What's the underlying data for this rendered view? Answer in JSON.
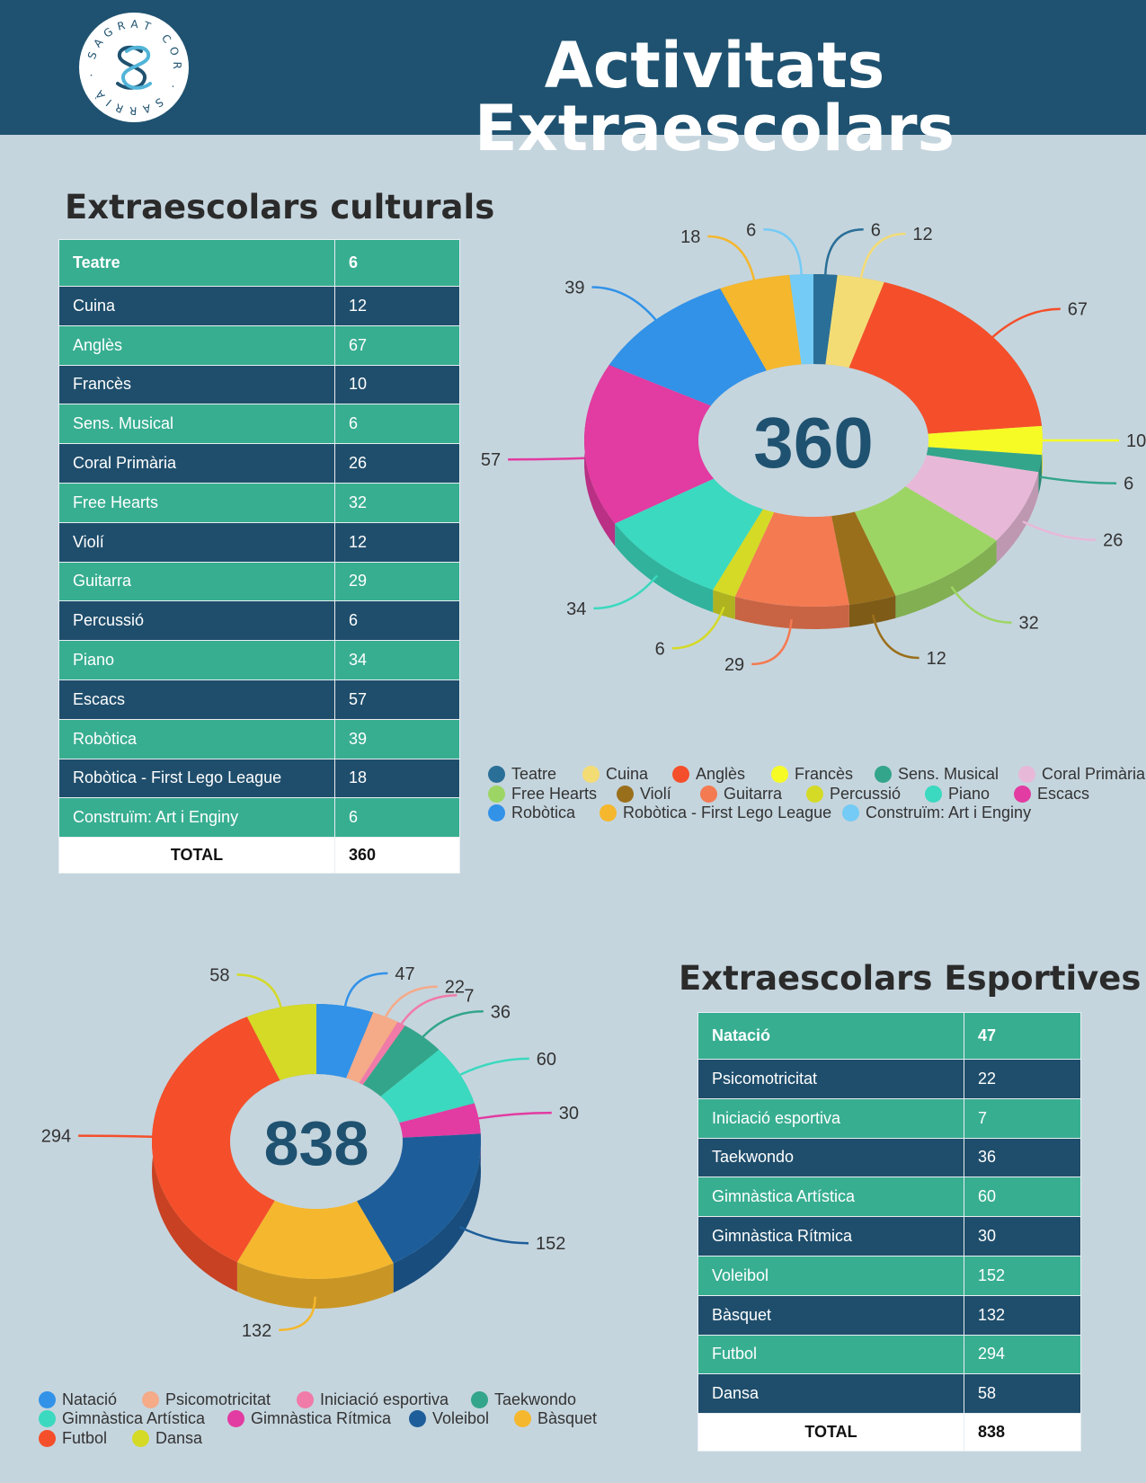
{
  "header": {
    "title": "Activitats Extraescolars"
  },
  "logo": {
    "ring_text": "SAGRAT COR · SARRIÀ ·"
  },
  "cultural": {
    "title": "Extraescolars culturals",
    "total_label": "TOTAL",
    "total_value": "360",
    "center_label": "360",
    "rows": [
      {
        "name": "Teatre",
        "value": 6,
        "color": "#2a6f97"
      },
      {
        "name": "Cuina",
        "value": 12,
        "color": "#f4dc74"
      },
      {
        "name": "Anglès",
        "value": 67,
        "color": "#f44f2a"
      },
      {
        "name": "Francès",
        "value": 10,
        "color": "#f6fb26"
      },
      {
        "name": "Sens. Musical",
        "value": 6,
        "color": "#33a58a"
      },
      {
        "name": "Coral Primària",
        "value": 26,
        "color": "#e8b8d8"
      },
      {
        "name": "Free Hearts",
        "value": 32,
        "color": "#9dd564"
      },
      {
        "name": "Violí",
        "value": 12,
        "color": "#9a6f1b"
      },
      {
        "name": "Guitarra",
        "value": 29,
        "color": "#f47a52"
      },
      {
        "name": "Percussió",
        "value": 6,
        "color": "#d4da26"
      },
      {
        "name": "Piano",
        "value": 34,
        "color": "#3bd9bf"
      },
      {
        "name": "Escacs",
        "value": 57,
        "color": "#e23ba1"
      },
      {
        "name": "Robòtica",
        "value": 39,
        "color": "#3192e8"
      },
      {
        "name": "Robòtica - First Lego League",
        "value": 18,
        "color": "#f5b72d"
      },
      {
        "name": "Construïm: Art i Enginy",
        "value": 6,
        "color": "#74cbf5"
      }
    ]
  },
  "sports": {
    "title": "Extraescolars Esportives",
    "total_label": "TOTAL",
    "total_value": "838",
    "center_label": "838",
    "rows": [
      {
        "name": "Natació",
        "value": 47,
        "color": "#3192e8"
      },
      {
        "name": "Psicomotricitat",
        "value": 22,
        "color": "#f5aa88"
      },
      {
        "name": "Iniciació esportiva",
        "value": 7,
        "color": "#f07aa8"
      },
      {
        "name": "Taekwondo",
        "value": 36,
        "color": "#33a58a"
      },
      {
        "name": "Gimnàstica  Artística",
        "value": 60,
        "color": "#3bd9bf"
      },
      {
        "name": "Gimnàstica Rítmica",
        "value": 30,
        "color": "#e23ba1"
      },
      {
        "name": "Voleibol",
        "value": 152,
        "color": "#1d5e9a"
      },
      {
        "name": "Bàsquet",
        "value": 132,
        "color": "#f5b72d"
      },
      {
        "name": "Futbol",
        "value": 294,
        "color": "#f44f2a"
      },
      {
        "name": "Dansa",
        "value": 58,
        "color": "#d4da26"
      }
    ]
  },
  "chart_data": [
    {
      "type": "pie",
      "title": "",
      "categories": [
        "Teatre",
        "Cuina",
        "Anglès",
        "Francès",
        "Sens. Musical",
        "Coral Primària",
        "Free Hearts",
        "Violí",
        "Guitarra",
        "Percussió",
        "Piano",
        "Escacs",
        "Robòtica",
        "Robòtica - First Lego League",
        "Construïm: Art i Enginy"
      ],
      "values": [
        6,
        12,
        67,
        10,
        6,
        26,
        32,
        12,
        29,
        6,
        34,
        57,
        39,
        18,
        6
      ],
      "center_text": "360",
      "legend": "bottom"
    },
    {
      "type": "pie",
      "title": "",
      "categories": [
        "Natació",
        "Psicomotricitat",
        "Iniciació esportiva",
        "Taekwondo",
        "Gimnàstica Artística",
        "Gimnàstica Rítmica",
        "Voleibol",
        "Bàsquet",
        "Futbol",
        "Dansa"
      ],
      "values": [
        47,
        22,
        7,
        36,
        60,
        30,
        152,
        132,
        294,
        58
      ],
      "center_text": "838",
      "legend": "bottom"
    }
  ]
}
